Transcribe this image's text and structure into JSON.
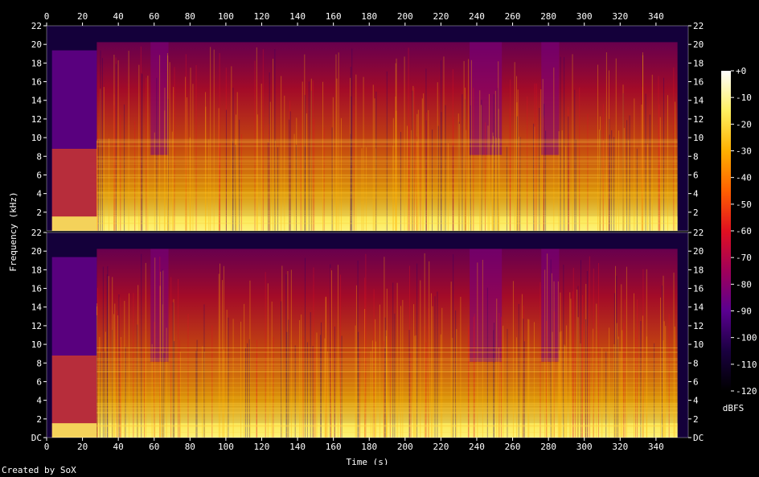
{
  "credit": "Created by SoX",
  "chart_data": {
    "type": "heatmap",
    "xlabel": "Time (s)",
    "ylabel": "Frequency (kHz)",
    "xlim": [
      0,
      358
    ],
    "ylim": [
      0,
      22
    ],
    "x_ticks": [
      "0",
      "20",
      "40",
      "60",
      "80",
      "100",
      "120",
      "140",
      "160",
      "180",
      "200",
      "220",
      "240",
      "260",
      "280",
      "300",
      "320",
      "340"
    ],
    "y_ticks": [
      "DC",
      "2",
      "4",
      "6",
      "8",
      "10",
      "12",
      "14",
      "16",
      "18",
      "20",
      "22"
    ],
    "channels": 2,
    "colorbar": {
      "label": "dBFS",
      "ticks": [
        "+0",
        "-10",
        "-20",
        "-30",
        "-40",
        "-50",
        "-60",
        "-70",
        "-80",
        "-90",
        "-100",
        "-110",
        "-120"
      ],
      "range": [
        -120,
        0
      ]
    },
    "colors": {
      "stop0": "#000000",
      "stop1": "#1a0040",
      "stop2": "#5a0090",
      "stop3": "#a0005a",
      "stop4": "#e01020",
      "stop5": "#ff6000",
      "stop6": "#ffb000",
      "stop7": "#fff060",
      "stop8": "#ffffff"
    }
  }
}
